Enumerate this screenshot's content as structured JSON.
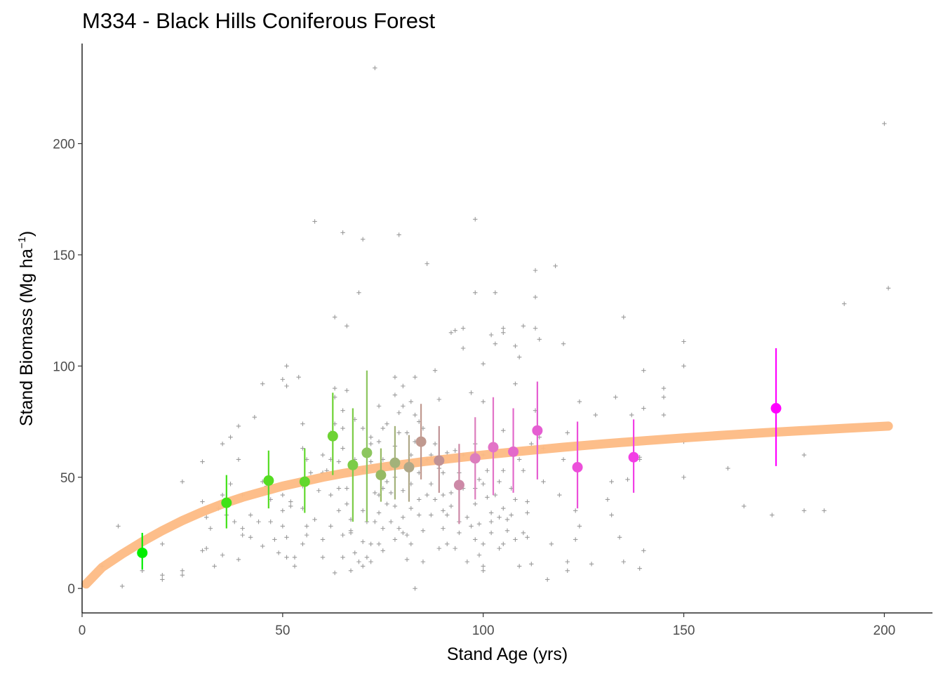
{
  "chart_data": {
    "type": "scatter",
    "title": "M334 - Black Hills Coniferous Forest",
    "xlabel": "Stand Age (yrs)",
    "ylabel": {
      "prefix": "Stand Biomass (Mg ha",
      "sup": "−1",
      "suffix": ")"
    },
    "xlim": [
      0,
      212
    ],
    "ylim": [
      -11,
      245
    ],
    "xticks": [
      0,
      50,
      100,
      150,
      200
    ],
    "yticks": [
      0,
      50,
      100,
      150,
      200
    ],
    "grid": false,
    "fit_curve": {
      "color": "#fdbb84",
      "x": [
        1,
        5,
        10,
        15,
        20,
        25,
        30,
        35,
        40,
        45,
        50,
        55,
        60,
        65,
        70,
        75,
        80,
        85,
        90,
        95,
        100,
        110,
        120,
        130,
        140,
        150,
        160,
        170,
        180,
        190,
        201
      ],
      "y": [
        2,
        9.5,
        15.5,
        21,
        26,
        30.5,
        34.5,
        38,
        41,
        43.5,
        46,
        48,
        50,
        51.7,
        53.2,
        54.6,
        55.8,
        57,
        58,
        59,
        60,
        61.8,
        63.5,
        65,
        66.4,
        67.7,
        68.9,
        70,
        71,
        72,
        73
      ]
    },
    "bin_means": [
      {
        "x": 15,
        "y": 16,
        "lo": 8.5,
        "hi": 25,
        "color": "#00ee00"
      },
      {
        "x": 36,
        "y": 38.5,
        "lo": 27,
        "hi": 51,
        "color": "#3fe216"
      },
      {
        "x": 46.5,
        "y": 48.5,
        "lo": 36,
        "hi": 62,
        "color": "#54dc22"
      },
      {
        "x": 55.5,
        "y": 48,
        "lo": 34,
        "hi": 63,
        "color": "#62d82d"
      },
      {
        "x": 62.5,
        "y": 68.5,
        "lo": 51,
        "hi": 88,
        "color": "#6dd333"
      },
      {
        "x": 67.5,
        "y": 55.5,
        "lo": 30,
        "hi": 81,
        "color": "#7ccc47"
      },
      {
        "x": 71,
        "y": 61,
        "lo": 30,
        "hi": 98,
        "color": "#8dc65f"
      },
      {
        "x": 74.5,
        "y": 51,
        "lo": 39,
        "hi": 63,
        "color": "#96ba63"
      },
      {
        "x": 78,
        "y": 56.5,
        "lo": 40,
        "hi": 73,
        "color": "#a3b27a"
      },
      {
        "x": 81.5,
        "y": 54.5,
        "lo": 39,
        "hi": 69,
        "color": "#aea787"
      },
      {
        "x": 84.5,
        "y": 66,
        "lo": 49,
        "hi": 83,
        "color": "#c0998f"
      },
      {
        "x": 89,
        "y": 57.5,
        "lo": 43,
        "hi": 73,
        "color": "#c09295"
      },
      {
        "x": 94,
        "y": 46.5,
        "lo": 29,
        "hi": 65,
        "color": "#cd89a7"
      },
      {
        "x": 98,
        "y": 58.5,
        "lo": 40,
        "hi": 77,
        "color": "#dc7dbd"
      },
      {
        "x": 102.5,
        "y": 63.5,
        "lo": 42,
        "hi": 86,
        "color": "#e373c7"
      },
      {
        "x": 107.5,
        "y": 61.5,
        "lo": 43,
        "hi": 81,
        "color": "#e369ca"
      },
      {
        "x": 113.5,
        "y": 71,
        "lo": 49,
        "hi": 93,
        "color": "#e55ed2"
      },
      {
        "x": 123.5,
        "y": 54.5,
        "lo": 36,
        "hi": 75,
        "color": "#ec4fda"
      },
      {
        "x": 137.5,
        "y": 59,
        "lo": 43,
        "hi": 76,
        "color": "#f23fe5"
      },
      {
        "x": 173,
        "y": 81,
        "lo": 55,
        "hi": 108,
        "color": "#ff00ff"
      }
    ],
    "raw_points": [
      [
        5,
        10
      ],
      [
        9,
        28
      ],
      [
        10,
        1
      ],
      [
        15,
        17
      ],
      [
        15,
        8
      ],
      [
        20,
        4
      ],
      [
        20,
        20
      ],
      [
        20,
        6
      ],
      [
        25,
        48
      ],
      [
        25,
        8
      ],
      [
        25,
        6
      ],
      [
        30,
        57
      ],
      [
        30,
        39
      ],
      [
        30,
        17
      ],
      [
        31,
        32
      ],
      [
        31,
        18
      ],
      [
        32,
        27
      ],
      [
        33,
        10
      ],
      [
        34,
        36
      ],
      [
        35,
        65
      ],
      [
        35,
        42
      ],
      [
        35,
        15
      ],
      [
        36,
        33
      ],
      [
        37,
        68
      ],
      [
        37,
        47
      ],
      [
        38,
        30
      ],
      [
        39,
        73
      ],
      [
        39,
        58
      ],
      [
        39,
        13
      ],
      [
        40,
        42
      ],
      [
        40,
        27
      ],
      [
        40,
        24
      ],
      [
        42,
        33
      ],
      [
        42,
        23
      ],
      [
        43,
        77
      ],
      [
        44,
        30
      ],
      [
        45,
        92
      ],
      [
        45,
        48
      ],
      [
        45,
        19
      ],
      [
        46,
        46
      ],
      [
        47,
        40
      ],
      [
        47,
        30
      ],
      [
        48,
        22
      ],
      [
        49,
        16
      ],
      [
        50,
        94
      ],
      [
        50,
        42
      ],
      [
        50,
        35
      ],
      [
        50,
        28
      ],
      [
        51,
        100
      ],
      [
        51,
        91
      ],
      [
        51,
        14
      ],
      [
        51,
        23
      ],
      [
        52,
        39
      ],
      [
        52,
        37
      ],
      [
        53,
        10
      ],
      [
        53,
        14
      ],
      [
        54,
        95
      ],
      [
        55,
        46
      ],
      [
        55,
        74
      ],
      [
        55,
        63
      ],
      [
        55,
        36
      ],
      [
        55,
        20
      ],
      [
        56,
        58
      ],
      [
        56,
        28
      ],
      [
        56,
        24
      ],
      [
        57,
        52
      ],
      [
        58,
        165
      ],
      [
        58,
        31
      ],
      [
        59,
        44
      ],
      [
        60,
        60
      ],
      [
        60,
        52
      ],
      [
        60,
        22
      ],
      [
        60,
        14
      ],
      [
        61,
        53
      ],
      [
        62,
        58
      ],
      [
        62,
        70
      ],
      [
        62,
        42
      ],
      [
        62,
        28
      ],
      [
        63,
        90
      ],
      [
        63,
        122
      ],
      [
        63,
        86
      ],
      [
        63,
        74
      ],
      [
        63,
        7
      ],
      [
        64,
        57
      ],
      [
        64,
        45
      ],
      [
        64,
        35
      ],
      [
        65,
        160
      ],
      [
        65,
        80
      ],
      [
        65,
        72
      ],
      [
        65,
        63
      ],
      [
        65,
        24
      ],
      [
        65,
        14
      ],
      [
        66,
        118
      ],
      [
        66,
        89
      ],
      [
        66,
        45
      ],
      [
        66,
        38
      ],
      [
        67,
        31
      ],
      [
        67,
        26
      ],
      [
        67,
        25
      ],
      [
        67,
        8
      ],
      [
        68,
        76
      ],
      [
        68,
        58
      ],
      [
        68,
        16
      ],
      [
        69,
        12
      ],
      [
        69,
        133
      ],
      [
        70,
        157
      ],
      [
        70,
        72
      ],
      [
        70,
        53
      ],
      [
        70,
        35
      ],
      [
        70,
        21
      ],
      [
        70,
        10
      ],
      [
        71,
        30
      ],
      [
        71,
        14
      ],
      [
        72,
        68
      ],
      [
        72,
        65
      ],
      [
        72,
        57
      ],
      [
        72,
        20
      ],
      [
        72,
        12
      ],
      [
        73,
        234
      ],
      [
        73,
        43
      ],
      [
        73,
        30
      ],
      [
        74,
        82
      ],
      [
        74,
        66
      ],
      [
        74,
        42
      ],
      [
        74,
        34
      ],
      [
        74,
        20
      ],
      [
        75,
        72
      ],
      [
        75,
        58
      ],
      [
        75,
        45
      ],
      [
        75,
        27
      ],
      [
        75,
        17
      ],
      [
        76,
        74
      ],
      [
        76,
        38
      ],
      [
        76,
        48
      ],
      [
        77,
        54
      ],
      [
        77,
        43
      ],
      [
        77,
        30
      ],
      [
        78,
        95
      ],
      [
        78,
        87
      ],
      [
        78,
        64
      ],
      [
        78,
        50
      ],
      [
        78,
        37
      ],
      [
        78,
        22
      ],
      [
        79,
        159
      ],
      [
        79,
        79
      ],
      [
        79,
        70
      ],
      [
        79,
        55
      ],
      [
        79,
        27
      ],
      [
        80,
        91
      ],
      [
        80,
        82
      ],
      [
        80,
        44
      ],
      [
        80,
        32
      ],
      [
        80,
        25
      ],
      [
        81,
        70
      ],
      [
        81,
        24
      ],
      [
        81,
        13
      ],
      [
        82,
        84
      ],
      [
        82,
        60
      ],
      [
        82,
        47
      ],
      [
        82,
        36
      ],
      [
        82,
        20
      ],
      [
        83,
        95
      ],
      [
        83,
        78
      ],
      [
        83,
        66
      ],
      [
        83,
        0
      ],
      [
        84,
        75
      ],
      [
        84,
        52
      ],
      [
        84,
        40
      ],
      [
        84,
        33
      ],
      [
        85,
        72
      ],
      [
        85,
        26
      ],
      [
        85,
        12
      ],
      [
        86,
        146
      ],
      [
        86,
        58
      ],
      [
        86,
        42
      ],
      [
        87,
        60
      ],
      [
        87,
        47
      ],
      [
        87,
        33
      ],
      [
        88,
        98
      ],
      [
        88,
        65
      ],
      [
        88,
        40
      ],
      [
        89,
        85
      ],
      [
        89,
        54
      ],
      [
        89,
        18
      ],
      [
        90,
        52
      ],
      [
        90,
        42
      ],
      [
        90,
        35
      ],
      [
        90,
        27
      ],
      [
        91,
        61
      ],
      [
        91,
        33
      ],
      [
        91,
        20
      ],
      [
        92,
        115
      ],
      [
        92,
        43
      ],
      [
        92,
        37
      ],
      [
        93,
        116
      ],
      [
        93,
        62
      ],
      [
        93,
        18
      ],
      [
        94,
        52
      ],
      [
        94,
        30
      ],
      [
        94,
        25
      ],
      [
        95,
        117
      ],
      [
        95,
        108
      ],
      [
        95,
        60
      ],
      [
        95,
        45
      ],
      [
        96,
        32
      ],
      [
        96,
        12
      ],
      [
        97,
        88
      ],
      [
        97,
        58
      ],
      [
        97,
        28
      ],
      [
        98,
        166
      ],
      [
        98,
        133
      ],
      [
        98,
        65
      ],
      [
        98,
        45
      ],
      [
        98,
        38
      ],
      [
        98,
        22
      ],
      [
        99,
        49
      ],
      [
        99,
        29
      ],
      [
        99,
        15
      ],
      [
        100,
        101
      ],
      [
        100,
        84
      ],
      [
        100,
        60
      ],
      [
        100,
        47
      ],
      [
        100,
        20
      ],
      [
        100,
        10
      ],
      [
        100,
        8
      ],
      [
        101,
        53
      ],
      [
        101,
        41
      ],
      [
        102,
        114
      ],
      [
        102,
        34
      ],
      [
        102,
        30
      ],
      [
        102,
        25
      ],
      [
        103,
        133
      ],
      [
        103,
        110
      ],
      [
        103,
        60
      ],
      [
        103,
        42
      ],
      [
        104,
        48
      ],
      [
        104,
        32
      ],
      [
        104,
        18
      ],
      [
        105,
        117
      ],
      [
        105,
        115
      ],
      [
        105,
        71
      ],
      [
        105,
        53
      ],
      [
        105,
        36
      ],
      [
        105,
        20
      ],
      [
        106,
        31
      ],
      [
        106,
        26
      ],
      [
        107,
        45
      ],
      [
        107,
        33
      ],
      [
        108,
        109
      ],
      [
        108,
        92
      ],
      [
        108,
        40
      ],
      [
        108,
        22
      ],
      [
        109,
        104
      ],
      [
        109,
        58
      ],
      [
        109,
        10
      ],
      [
        110,
        118
      ],
      [
        110,
        53
      ],
      [
        110,
        25
      ],
      [
        111,
        39
      ],
      [
        111,
        34
      ],
      [
        111,
        23
      ],
      [
        112,
        65
      ],
      [
        112,
        11
      ],
      [
        113,
        143
      ],
      [
        113,
        131
      ],
      [
        113,
        80
      ],
      [
        113,
        117
      ],
      [
        114,
        112
      ],
      [
        114,
        68
      ],
      [
        115,
        63
      ],
      [
        115,
        48
      ],
      [
        116,
        4
      ],
      [
        117,
        20
      ],
      [
        118,
        145
      ],
      [
        119,
        42
      ],
      [
        120,
        110
      ],
      [
        120,
        58
      ],
      [
        121,
        70
      ],
      [
        121,
        12
      ],
      [
        121,
        8
      ],
      [
        123,
        35
      ],
      [
        123,
        22
      ],
      [
        124,
        28
      ],
      [
        124,
        84
      ],
      [
        127,
        11
      ],
      [
        128,
        78
      ],
      [
        131,
        40
      ],
      [
        132,
        33
      ],
      [
        132,
        48
      ],
      [
        133,
        86
      ],
      [
        134,
        23
      ],
      [
        135,
        122
      ],
      [
        135,
        12
      ],
      [
        136,
        49
      ],
      [
        137,
        78
      ],
      [
        139,
        9
      ],
      [
        139,
        58
      ],
      [
        139,
        59
      ],
      [
        140,
        81
      ],
      [
        140,
        98
      ],
      [
        140,
        17
      ],
      [
        145,
        90
      ],
      [
        145,
        86
      ],
      [
        145,
        78
      ],
      [
        150,
        111
      ],
      [
        150,
        100
      ],
      [
        150,
        66
      ],
      [
        150,
        50
      ],
      [
        161,
        54
      ],
      [
        165,
        37
      ],
      [
        172,
        33
      ],
      [
        180,
        60
      ],
      [
        180,
        35
      ],
      [
        185,
        35
      ],
      [
        190,
        128
      ],
      [
        200,
        209
      ],
      [
        201,
        135
      ]
    ]
  }
}
